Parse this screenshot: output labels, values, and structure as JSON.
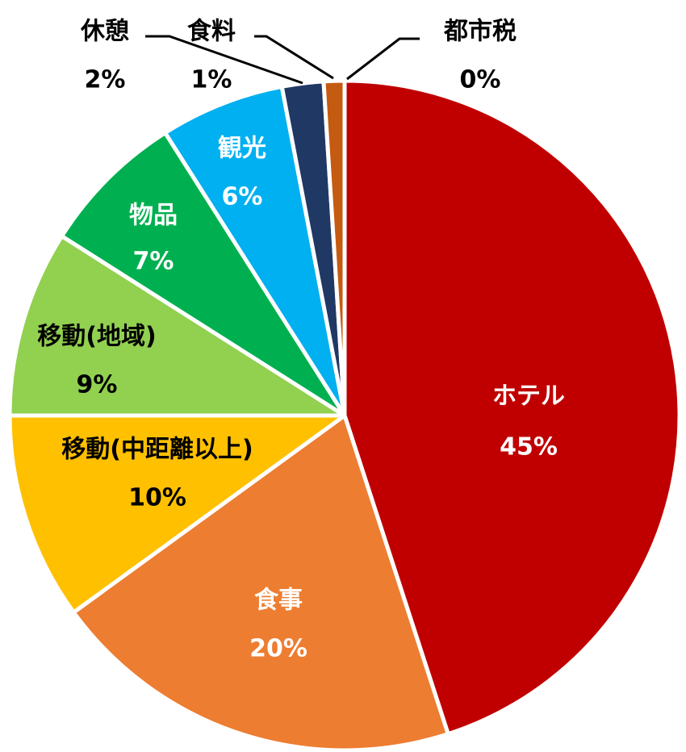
{
  "chart_data": {
    "type": "pie",
    "categories": [
      "ホテル",
      "食事",
      "移動(中距離以上)",
      "移動(地域)",
      "物品",
      "観光",
      "休憩",
      "食料",
      "都市税"
    ],
    "values": [
      45,
      20,
      10,
      9,
      7,
      6,
      2,
      1,
      0
    ],
    "value_labels": [
      "45%",
      "20%",
      "10%",
      "9%",
      "7%",
      "6%",
      "2%",
      "1%",
      "0%"
    ],
    "colors": [
      "#c00000",
      "#ed7d31",
      "#ffc000",
      "#92d050",
      "#00b050",
      "#00b0f0",
      "#203864",
      "#c55a11",
      "#843c0c"
    ]
  }
}
